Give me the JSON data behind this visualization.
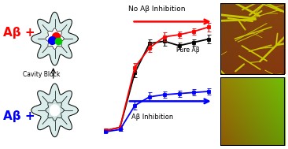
{
  "black_x": [
    0,
    1,
    2,
    3,
    4,
    5,
    6,
    7
  ],
  "black_y": [
    0.02,
    0.05,
    0.55,
    0.82,
    0.84,
    0.8,
    0.83,
    0.86
  ],
  "black_err": [
    0.02,
    0.02,
    0.04,
    0.04,
    0.04,
    0.03,
    0.03,
    0.04
  ],
  "red_x": [
    0,
    1,
    2,
    3,
    4,
    5,
    6,
    7
  ],
  "red_y": [
    0.02,
    0.05,
    0.6,
    0.78,
    0.88,
    0.9,
    0.93,
    0.97
  ],
  "red_err": [
    0.02,
    0.02,
    0.04,
    0.04,
    0.04,
    0.03,
    0.03,
    0.04
  ],
  "blue_x": [
    0,
    1,
    2,
    3,
    4,
    5,
    6,
    7
  ],
  "blue_y": [
    0.01,
    0.03,
    0.25,
    0.33,
    0.35,
    0.36,
    0.37,
    0.38
  ],
  "blue_err": [
    0.01,
    0.01,
    0.04,
    0.04,
    0.03,
    0.03,
    0.03,
    0.03
  ],
  "label_no_inhibition": "No Aβ Inhibition",
  "label_pure": "Pure Aβ",
  "label_inhibition": "Aβ Inhibition",
  "label_abeta_red": "Aβ +",
  "label_abeta_blue": "Aβ +",
  "label_cavity": "Cavity Block",
  "bg_color": "#ffffff",
  "afm1_bg": "#7B3A10",
  "afm1_fibril_color": "#C8C800",
  "afm2_bg_left": "#8B6914",
  "afm2_bg_right": "#6B8B00"
}
